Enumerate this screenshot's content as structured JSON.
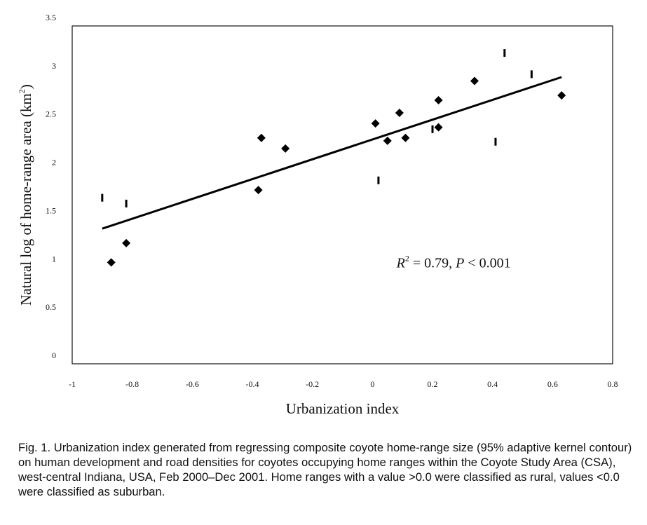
{
  "chart_data": {
    "type": "scatter",
    "xlabel": "Urbanization index",
    "ylabel_main": "Natural log of home-range area (km",
    "ylabel_sup": "2",
    "ylabel_end": ")",
    "xlim": [
      -1,
      0.8
    ],
    "ylim": [
      0,
      3.5
    ],
    "x_ticks": [
      -1,
      -0.8,
      -0.6,
      -0.4,
      -0.2,
      0,
      0.2,
      0.4,
      0.6,
      0.8
    ],
    "x_tick_labels": [
      "-1",
      "-0.8",
      "-0.6",
      "-0.4",
      "-0.2",
      "0",
      "0.2",
      "0.4",
      "0.6",
      "0.8"
    ],
    "y_ticks": [
      0,
      0.5,
      1,
      1.5,
      2,
      2.5,
      3,
      3.5
    ],
    "y_tick_labels": [
      "0",
      "0.5",
      "1",
      "1.5",
      "2",
      "2.5",
      "3",
      "3.5"
    ],
    "grid": false,
    "series": [
      {
        "marker": "diamond",
        "points": [
          [
            -0.87,
            1.05
          ],
          [
            -0.82,
            1.25
          ],
          [
            -0.38,
            1.8
          ],
          [
            -0.37,
            2.34
          ],
          [
            -0.29,
            2.23
          ],
          [
            0.01,
            2.49
          ],
          [
            0.05,
            2.31
          ],
          [
            0.09,
            2.6
          ],
          [
            0.11,
            2.34
          ],
          [
            0.22,
            2.73
          ],
          [
            0.22,
            2.45
          ],
          [
            0.34,
            2.93
          ],
          [
            0.63,
            2.78
          ]
        ]
      },
      {
        "marker": "bar",
        "points": [
          [
            -0.9,
            1.72
          ],
          [
            -0.82,
            1.66
          ],
          [
            0.02,
            1.9
          ],
          [
            0.2,
            2.43
          ],
          [
            0.41,
            2.3
          ],
          [
            0.44,
            3.22
          ],
          [
            0.53,
            3.0
          ]
        ]
      }
    ],
    "regression": {
      "x": [
        -0.9,
        0.63
      ],
      "y": [
        1.4,
        2.97
      ]
    },
    "annotation": {
      "r": "R",
      "sup": "2",
      "middle": " = 0.79, ",
      "p": "P",
      "rest": " < 0.001",
      "x": 0.08,
      "y": 1.0
    }
  },
  "caption": "Fig. 1. Urbanization index generated from regressing composite coyote home-range size (95% adaptive kernel contour) on human development and road densities for coyotes occupying home ranges within the Coyote Study Area (CSA), west-central Indiana, USA, Feb 2000–Dec 2001. Home ranges with a value >0.0 were classified as rural, values <0.0 were classified as suburban."
}
